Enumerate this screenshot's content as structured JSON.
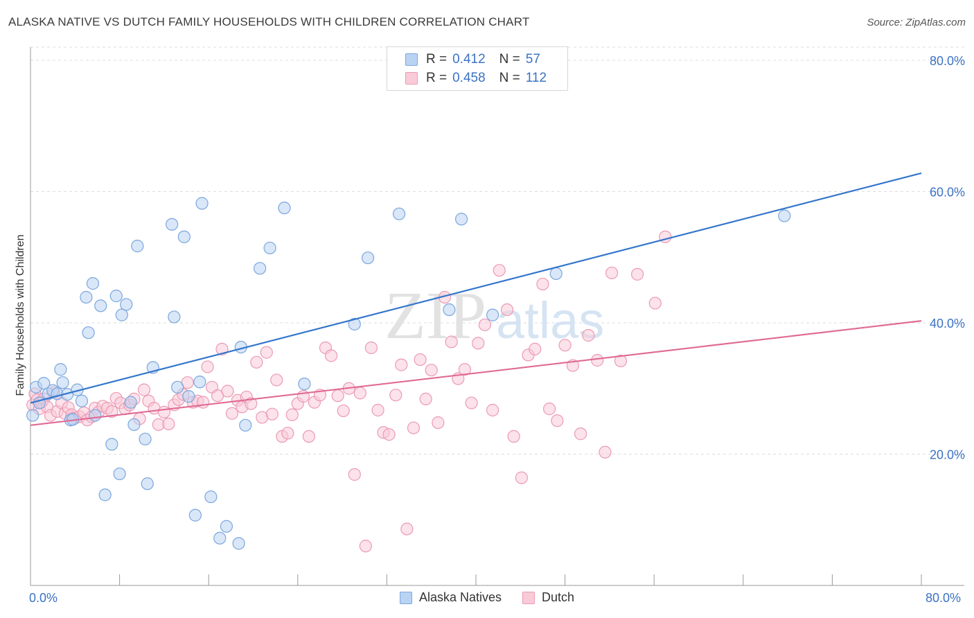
{
  "title": "ALASKA NATIVE VS DUTCH FAMILY HOUSEHOLDS WITH CHILDREN CORRELATION CHART",
  "source": "Source: ZipAtlas.com",
  "watermark": {
    "zip": "ZIP",
    "atlas": "atlas"
  },
  "colors": {
    "blue_fill": "#b9d3f3",
    "blue_stroke": "#7aa6dd",
    "blue_line": "#3375cc",
    "pink_fill": "#f9cbd8",
    "pink_stroke": "#eb9ab3",
    "pink_line": "#e06a95",
    "axis_label": "#3b72c4"
  },
  "legend": {
    "r_label": "R =",
    "n_label": "N =",
    "series": [
      {
        "name": "Alaska Natives",
        "r": "0.412",
        "n": "57"
      },
      {
        "name": "Dutch",
        "r": "0.458",
        "n": "112"
      }
    ]
  },
  "chart_data": {
    "type": "scatter",
    "title": "ALASKA NATIVE VS DUTCH FAMILY HOUSEHOLDS WITH CHILDREN CORRELATION CHART",
    "xlabel": "",
    "ylabel": "Family Households with Children",
    "xlim": [
      0,
      80
    ],
    "ylim": [
      0,
      82
    ],
    "x_tick_labels": [
      "0.0%",
      "80.0%"
    ],
    "y_ticks": [
      20,
      40,
      60,
      80
    ],
    "y_tick_labels": [
      "20.0%",
      "40.0%",
      "60.0%",
      "80.0%"
    ],
    "grid": true,
    "series": [
      {
        "name": "Alaska Natives",
        "color": "blue",
        "trend": {
          "x": [
            0,
            80
          ],
          "y": [
            27.8,
            62.8
          ]
        },
        "points": [
          [
            0.2,
            25.9
          ],
          [
            0.5,
            30.2
          ],
          [
            0.8,
            27.8
          ],
          [
            1.2,
            30.8
          ],
          [
            1.6,
            29.2
          ],
          [
            2.0,
            29.7
          ],
          [
            2.4,
            29.2
          ],
          [
            2.7,
            32.9
          ],
          [
            2.9,
            30.9
          ],
          [
            3.3,
            29.1
          ],
          [
            3.6,
            25.2
          ],
          [
            3.8,
            25.3
          ],
          [
            4.2,
            29.8
          ],
          [
            4.6,
            28.1
          ],
          [
            5.0,
            43.9
          ],
          [
            5.2,
            38.5
          ],
          [
            5.6,
            46.0
          ],
          [
            5.8,
            25.9
          ],
          [
            6.3,
            42.6
          ],
          [
            6.7,
            13.8
          ],
          [
            7.3,
            21.5
          ],
          [
            7.7,
            44.1
          ],
          [
            8.0,
            17.0
          ],
          [
            8.2,
            41.2
          ],
          [
            8.6,
            42.8
          ],
          [
            9.0,
            27.9
          ],
          [
            9.3,
            24.5
          ],
          [
            9.6,
            51.7
          ],
          [
            10.3,
            22.3
          ],
          [
            10.5,
            15.5
          ],
          [
            11.0,
            33.2
          ],
          [
            12.7,
            55.0
          ],
          [
            12.9,
            40.9
          ],
          [
            13.2,
            30.2
          ],
          [
            13.8,
            53.1
          ],
          [
            14.2,
            28.8
          ],
          [
            14.8,
            10.7
          ],
          [
            15.2,
            31.0
          ],
          [
            15.4,
            58.2
          ],
          [
            16.2,
            13.5
          ],
          [
            17.0,
            7.2
          ],
          [
            17.6,
            9.0
          ],
          [
            18.7,
            6.4
          ],
          [
            18.9,
            36.3
          ],
          [
            19.3,
            24.4
          ],
          [
            20.6,
            48.3
          ],
          [
            21.5,
            51.4
          ],
          [
            22.8,
            57.5
          ],
          [
            24.6,
            30.7
          ],
          [
            29.1,
            39.8
          ],
          [
            30.3,
            49.9
          ],
          [
            33.1,
            56.6
          ],
          [
            37.6,
            42.0
          ],
          [
            38.7,
            55.8
          ],
          [
            41.5,
            41.2
          ],
          [
            47.2,
            47.5
          ],
          [
            67.7,
            56.3
          ]
        ]
      },
      {
        "name": "Dutch",
        "color": "pink",
        "trend": {
          "x": [
            0,
            80
          ],
          "y": [
            24.4,
            40.3
          ]
        },
        "points": [
          [
            0.2,
            27.5
          ],
          [
            0.4,
            29.2
          ],
          [
            0.6,
            28.3
          ],
          [
            0.8,
            26.9
          ],
          [
            1.0,
            27.9
          ],
          [
            1.2,
            28.4
          ],
          [
            1.5,
            27.2
          ],
          [
            1.8,
            25.9
          ],
          [
            2.1,
            29.4
          ],
          [
            2.4,
            26.5
          ],
          [
            2.8,
            27.8
          ],
          [
            3.1,
            26.2
          ],
          [
            3.4,
            27.1
          ],
          [
            3.7,
            26.0
          ],
          [
            4.0,
            25.5
          ],
          [
            4.4,
            25.7
          ],
          [
            4.8,
            26.3
          ],
          [
            5.1,
            25.2
          ],
          [
            5.5,
            25.7
          ],
          [
            5.8,
            27.0
          ],
          [
            6.1,
            26.4
          ],
          [
            6.5,
            27.3
          ],
          [
            6.9,
            27.0
          ],
          [
            7.3,
            26.5
          ],
          [
            7.7,
            28.5
          ],
          [
            8.1,
            27.8
          ],
          [
            8.5,
            26.9
          ],
          [
            8.9,
            27.5
          ],
          [
            9.3,
            28.4
          ],
          [
            9.8,
            25.4
          ],
          [
            10.2,
            29.8
          ],
          [
            10.6,
            28.1
          ],
          [
            11.1,
            27.0
          ],
          [
            11.5,
            24.5
          ],
          [
            12.0,
            26.4
          ],
          [
            12.4,
            24.6
          ],
          [
            12.9,
            27.5
          ],
          [
            13.3,
            28.3
          ],
          [
            13.7,
            29.1
          ],
          [
            14.1,
            30.9
          ],
          [
            14.6,
            27.9
          ],
          [
            15.0,
            28.1
          ],
          [
            15.5,
            27.9
          ],
          [
            15.9,
            33.3
          ],
          [
            16.3,
            30.2
          ],
          [
            16.8,
            28.9
          ],
          [
            17.2,
            36.0
          ],
          [
            17.7,
            29.6
          ],
          [
            18.1,
            26.2
          ],
          [
            18.6,
            28.2
          ],
          [
            19.0,
            27.2
          ],
          [
            19.4,
            28.7
          ],
          [
            19.8,
            27.7
          ],
          [
            20.3,
            34.0
          ],
          [
            20.8,
            25.6
          ],
          [
            21.2,
            35.5
          ],
          [
            21.7,
            26.1
          ],
          [
            22.1,
            31.3
          ],
          [
            22.6,
            22.7
          ],
          [
            23.1,
            23.2
          ],
          [
            23.5,
            26.0
          ],
          [
            24.0,
            27.7
          ],
          [
            24.5,
            28.8
          ],
          [
            25.0,
            22.7
          ],
          [
            25.5,
            27.9
          ],
          [
            26.0,
            29.0
          ],
          [
            26.5,
            36.2
          ],
          [
            27.0,
            35.0
          ],
          [
            27.6,
            28.9
          ],
          [
            28.1,
            26.6
          ],
          [
            28.6,
            30.0
          ],
          [
            29.1,
            16.9
          ],
          [
            29.6,
            29.3
          ],
          [
            30.1,
            6.0
          ],
          [
            30.6,
            36.2
          ],
          [
            31.2,
            26.7
          ],
          [
            31.7,
            23.3
          ],
          [
            32.2,
            23.0
          ],
          [
            32.8,
            29.0
          ],
          [
            33.3,
            33.6
          ],
          [
            33.8,
            8.6
          ],
          [
            34.4,
            24.0
          ],
          [
            35.0,
            34.4
          ],
          [
            35.5,
            28.4
          ],
          [
            36.0,
            32.8
          ],
          [
            36.6,
            24.8
          ],
          [
            37.2,
            43.9
          ],
          [
            37.8,
            37.1
          ],
          [
            38.4,
            31.5
          ],
          [
            39.0,
            32.9
          ],
          [
            39.6,
            27.8
          ],
          [
            40.2,
            36.9
          ],
          [
            40.8,
            39.7
          ],
          [
            41.5,
            26.7
          ],
          [
            42.1,
            48.0
          ],
          [
            42.8,
            42.0
          ],
          [
            43.4,
            22.7
          ],
          [
            44.1,
            16.4
          ],
          [
            44.7,
            35.1
          ],
          [
            45.3,
            36.0
          ],
          [
            46.0,
            45.9
          ],
          [
            46.6,
            26.9
          ],
          [
            47.3,
            25.1
          ],
          [
            48.0,
            36.6
          ],
          [
            48.7,
            33.5
          ],
          [
            49.4,
            23.1
          ],
          [
            50.1,
            38.1
          ],
          [
            50.9,
            34.3
          ],
          [
            51.6,
            20.3
          ],
          [
            52.2,
            47.6
          ],
          [
            53.0,
            34.2
          ],
          [
            54.5,
            47.4
          ],
          [
            56.1,
            43.0
          ],
          [
            57.0,
            53.1
          ]
        ]
      }
    ]
  }
}
